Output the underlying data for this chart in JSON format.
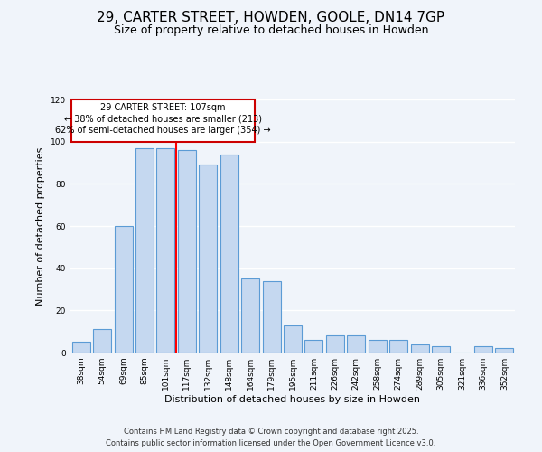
{
  "title": "29, CARTER STREET, HOWDEN, GOOLE, DN14 7GP",
  "subtitle": "Size of property relative to detached houses in Howden",
  "xlabel": "Distribution of detached houses by size in Howden",
  "ylabel": "Number of detached properties",
  "categories": [
    "38sqm",
    "54sqm",
    "69sqm",
    "85sqm",
    "101sqm",
    "117sqm",
    "132sqm",
    "148sqm",
    "164sqm",
    "179sqm",
    "195sqm",
    "211sqm",
    "226sqm",
    "242sqm",
    "258sqm",
    "274sqm",
    "289sqm",
    "305sqm",
    "321sqm",
    "336sqm",
    "352sqm"
  ],
  "values": [
    5,
    11,
    60,
    97,
    97,
    96,
    89,
    94,
    35,
    34,
    13,
    6,
    8,
    8,
    6,
    6,
    4,
    3,
    0,
    3,
    2
  ],
  "bar_color": "#c5d8f0",
  "bar_edge_color": "#5b9bd5",
  "red_line_index": 4.5,
  "annotation_title": "29 CARTER STREET: 107sqm",
  "annotation_line1": "← 38% of detached houses are smaller (213)",
  "annotation_line2": "62% of semi-detached houses are larger (354) →",
  "annotation_box_edge_color": "#cc0000",
  "ylim": [
    0,
    120
  ],
  "yticks": [
    0,
    20,
    40,
    60,
    80,
    100,
    120
  ],
  "footer_line1": "Contains HM Land Registry data © Crown copyright and database right 2025.",
  "footer_line2": "Contains public sector information licensed under the Open Government Licence v3.0.",
  "background_color": "#f0f4fa",
  "grid_color": "#ffffff",
  "title_fontsize": 11,
  "subtitle_fontsize": 9,
  "axis_label_fontsize": 8,
  "tick_fontsize": 6.5,
  "annotation_fontsize": 7,
  "footer_fontsize": 6
}
